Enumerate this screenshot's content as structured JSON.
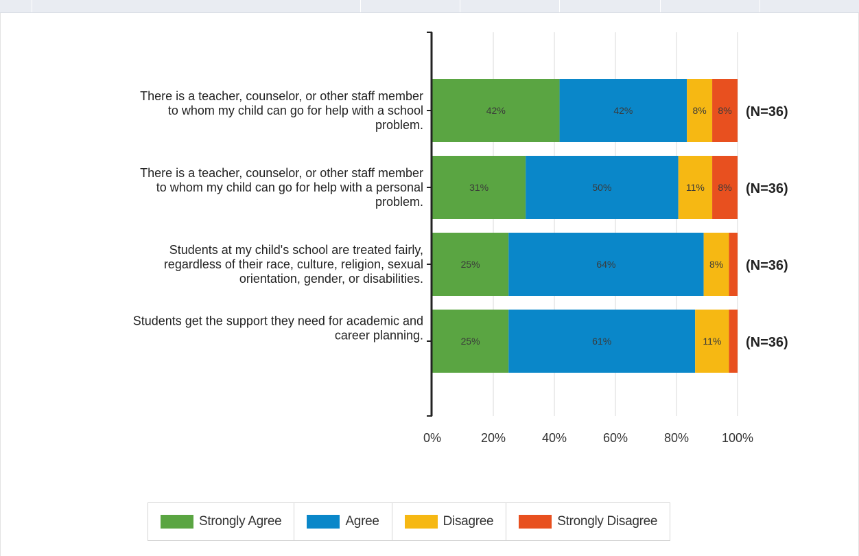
{
  "chart_data": {
    "type": "bar",
    "orientation": "horizontal",
    "stacked": true,
    "percent_stacked": true,
    "categories": [
      "There is a teacher, counselor, or other staff member to whom my child can go for help with a school problem.",
      "There is a teacher, counselor, or other staff member to whom my child can go for help with a personal problem.",
      "Students at my child's school are treated fairly, regardless of their race, culture, religion, sexual orientation, gender, or disabilities.",
      "Students get the support they need for academic and career planning."
    ],
    "category_lines": [
      [
        "There is a teacher, counselor, or other staff member",
        "to whom my child can go for help with a school",
        "problem."
      ],
      [
        "There is a teacher, counselor, or other staff member",
        "to whom my child can go for help with a personal",
        "problem."
      ],
      [
        "Students at my child's school are treated fairly,",
        "regardless of their race, culture, religion, sexual",
        "orientation, gender, or disabilities."
      ],
      [
        "Students get the support they need for academic and",
        "career planning."
      ]
    ],
    "series": [
      {
        "name": "Strongly Agree",
        "color": "#5aa542",
        "values": [
          41.7,
          30.6,
          25.0,
          25.0
        ],
        "labels": [
          "42%",
          "31%",
          "25%",
          "25%"
        ]
      },
      {
        "name": "Agree",
        "color": "#0a87c9",
        "values": [
          41.7,
          50.0,
          63.9,
          61.1
        ],
        "labels": [
          "42%",
          "50%",
          "64%",
          "61%"
        ]
      },
      {
        "name": "Disagree",
        "color": "#f6b813",
        "values": [
          8.3,
          11.1,
          8.3,
          11.1
        ],
        "labels": [
          "8%",
          "11%",
          "8%",
          "11%"
        ]
      },
      {
        "name": "Strongly Disagree",
        "color": "#e8501f",
        "values": [
          8.3,
          8.3,
          2.8,
          2.8
        ],
        "labels": [
          "8%",
          "8%",
          "",
          ""
        ]
      }
    ],
    "n_labels": [
      "(N=36)",
      "(N=36)",
      "(N=36)",
      "(N=36)"
    ],
    "xlim": [
      0,
      100
    ],
    "xticks": [
      "0%",
      "20%",
      "40%",
      "60%",
      "80%",
      "100%"
    ],
    "grid": true,
    "legend_position": "bottom"
  }
}
